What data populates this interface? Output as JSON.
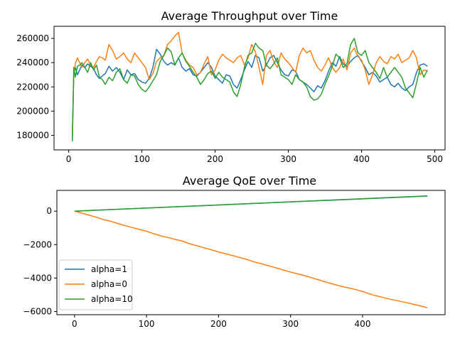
{
  "chart_data": [
    {
      "type": "line",
      "title": "Average Throughput over Time",
      "xlabel": "",
      "ylabel": "",
      "xlim": [
        -20,
        514
      ],
      "ylim": [
        168000,
        270000
      ],
      "x_ticks": [
        0,
        100,
        200,
        300,
        400,
        500
      ],
      "y_ticks": [
        180000,
        200000,
        220000,
        240000,
        260000
      ],
      "grid": false,
      "series": [
        {
          "name": "alpha=1",
          "color": "#1f77b4",
          "x": [
            5,
            7,
            9,
            12,
            15,
            18,
            22,
            26,
            30,
            34,
            38,
            42,
            46,
            50,
            55,
            60,
            65,
            70,
            75,
            80,
            85,
            90,
            95,
            100,
            105,
            110,
            115,
            120,
            125,
            130,
            135,
            140,
            145,
            150,
            155,
            160,
            165,
            170,
            175,
            180,
            185,
            190,
            195,
            200,
            205,
            210,
            215,
            220,
            225,
            230,
            235,
            240,
            245,
            250,
            255,
            260,
            265,
            270,
            275,
            280,
            285,
            290,
            295,
            300,
            305,
            310,
            315,
            320,
            325,
            330,
            335,
            340,
            345,
            350,
            355,
            360,
            365,
            370,
            375,
            380,
            385,
            390,
            395,
            400,
            405,
            410,
            415,
            420,
            425,
            430,
            435,
            440,
            445,
            450,
            455,
            460,
            465,
            470,
            475,
            480,
            485,
            490
          ],
          "y": [
            176000,
            232000,
            236000,
            230000,
            234000,
            238000,
            236000,
            239000,
            237000,
            235000,
            230000,
            227000,
            229000,
            231000,
            237000,
            233000,
            236000,
            232000,
            226000,
            234000,
            230000,
            231000,
            226000,
            224000,
            223000,
            227000,
            236000,
            251000,
            247000,
            241000,
            238000,
            240000,
            238000,
            244000,
            236000,
            233000,
            235000,
            230000,
            229000,
            232000,
            236000,
            240000,
            236000,
            229000,
            226000,
            223000,
            230000,
            229000,
            222000,
            219000,
            226000,
            234000,
            241000,
            236000,
            246000,
            244000,
            233000,
            238000,
            244000,
            246000,
            240000,
            234000,
            230000,
            229000,
            234000,
            233000,
            226000,
            224000,
            222000,
            219000,
            216000,
            221000,
            219000,
            225000,
            233000,
            240000,
            237000,
            245000,
            239000,
            237000,
            241000,
            244000,
            246000,
            241000,
            236000,
            230000,
            232000,
            229000,
            224000,
            226000,
            228000,
            222000,
            220000,
            223000,
            219000,
            217000,
            220000,
            222000,
            232000,
            238000,
            239000,
            237000
          ]
        },
        {
          "name": "alpha=0",
          "color": "#ff7f0e",
          "x": [
            5,
            7,
            9,
            12,
            15,
            18,
            22,
            26,
            30,
            34,
            38,
            42,
            46,
            50,
            55,
            60,
            65,
            70,
            75,
            80,
            85,
            90,
            95,
            100,
            105,
            110,
            115,
            120,
            125,
            130,
            135,
            140,
            145,
            150,
            155,
            160,
            165,
            170,
            175,
            180,
            185,
            190,
            195,
            200,
            205,
            210,
            215,
            220,
            225,
            230,
            235,
            240,
            245,
            250,
            255,
            260,
            265,
            270,
            275,
            280,
            285,
            290,
            295,
            300,
            305,
            310,
            315,
            320,
            325,
            330,
            335,
            340,
            345,
            350,
            355,
            360,
            365,
            370,
            375,
            380,
            385,
            390,
            395,
            400,
            405,
            410,
            415,
            420,
            425,
            430,
            435,
            440,
            445,
            450,
            455,
            460,
            465,
            470,
            475,
            480,
            485,
            490
          ],
          "y": [
            182000,
            230000,
            239000,
            244000,
            240000,
            236000,
            240000,
            243000,
            238000,
            236000,
            241000,
            245000,
            244000,
            242000,
            255000,
            250000,
            243000,
            245000,
            248000,
            243000,
            240000,
            248000,
            244000,
            240000,
            236000,
            226000,
            231000,
            241000,
            244000,
            246000,
            255000,
            258000,
            262000,
            265000,
            248000,
            242000,
            238000,
            236000,
            230000,
            232000,
            239000,
            245000,
            230000,
            234000,
            242000,
            247000,
            244000,
            242000,
            240000,
            244000,
            246000,
            238000,
            244000,
            255000,
            249000,
            236000,
            222000,
            246000,
            250000,
            241000,
            236000,
            248000,
            243000,
            240000,
            236000,
            232000,
            246000,
            252000,
            248000,
            250000,
            242000,
            236000,
            233000,
            238000,
            244000,
            236000,
            232000,
            236000,
            243000,
            234000,
            248000,
            252000,
            245000,
            242000,
            234000,
            222000,
            230000,
            240000,
            245000,
            241000,
            239000,
            245000,
            243000,
            247000,
            240000,
            242000,
            244000,
            250000,
            244000,
            230000,
            234000,
            233000
          ]
        },
        {
          "name": "alpha=10",
          "color": "#2ca02c",
          "x": [
            5,
            7,
            9,
            12,
            15,
            18,
            22,
            26,
            30,
            34,
            38,
            42,
            46,
            50,
            55,
            60,
            65,
            70,
            75,
            80,
            85,
            90,
            95,
            100,
            105,
            110,
            115,
            120,
            125,
            130,
            135,
            140,
            145,
            150,
            155,
            160,
            165,
            170,
            175,
            180,
            185,
            190,
            195,
            200,
            205,
            210,
            215,
            220,
            225,
            230,
            235,
            240,
            245,
            250,
            255,
            260,
            265,
            270,
            275,
            280,
            285,
            290,
            295,
            300,
            305,
            310,
            315,
            320,
            325,
            330,
            335,
            340,
            345,
            350,
            355,
            360,
            365,
            370,
            375,
            380,
            385,
            390,
            395,
            400,
            405,
            410,
            415,
            420,
            425,
            430,
            435,
            440,
            445,
            450,
            455,
            460,
            465,
            470,
            475,
            480,
            485,
            490
          ],
          "y": [
            175000,
            236000,
            228000,
            237000,
            238000,
            240000,
            236000,
            232000,
            240000,
            234000,
            238000,
            228000,
            226000,
            222000,
            228000,
            225000,
            232000,
            235000,
            226000,
            223000,
            230000,
            229000,
            222000,
            218000,
            216000,
            220000,
            225000,
            230000,
            241000,
            246000,
            252000,
            249000,
            238000,
            244000,
            248000,
            241000,
            237000,
            232000,
            228000,
            222000,
            226000,
            231000,
            233000,
            227000,
            232000,
            228000,
            226000,
            224000,
            216000,
            212000,
            222000,
            236000,
            246000,
            248000,
            256000,
            252000,
            250000,
            238000,
            235000,
            239000,
            244000,
            230000,
            228000,
            226000,
            222000,
            230000,
            226000,
            224000,
            220000,
            212000,
            209000,
            210000,
            214000,
            222000,
            229000,
            237000,
            247000,
            244000,
            236000,
            239000,
            255000,
            260000,
            248000,
            246000,
            250000,
            240000,
            236000,
            232000,
            227000,
            236000,
            228000,
            232000,
            236000,
            232000,
            228000,
            219000,
            215000,
            211000,
            223000,
            236000,
            228000,
            234000
          ]
        }
      ]
    },
    {
      "type": "line",
      "title": "Average QoE over Time",
      "xlabel": "",
      "ylabel": "",
      "xlim": [
        -24.5,
        514.5
      ],
      "ylim": [
        -6190,
        1240
      ],
      "x_ticks": [
        0,
        100,
        200,
        300,
        400
      ],
      "y_ticks": [
        0,
        -2000,
        -4000,
        -6000
      ],
      "grid": false,
      "legend": {
        "placement": "lower-left",
        "entries": [
          "alpha=1",
          "alpha=0",
          "alpha=10"
        ]
      },
      "series": [
        {
          "name": "alpha=1",
          "color": "#1f77b4",
          "x": [
            0,
            490
          ],
          "y": [
            0,
            900
          ]
        },
        {
          "name": "alpha=0",
          "color": "#ff7f0e",
          "x": [
            0,
            10,
            20,
            30,
            40,
            50,
            60,
            70,
            80,
            90,
            100,
            110,
            120,
            130,
            140,
            150,
            160,
            170,
            180,
            190,
            200,
            210,
            220,
            230,
            240,
            250,
            260,
            270,
            280,
            290,
            300,
            310,
            320,
            330,
            340,
            350,
            360,
            370,
            380,
            390,
            400,
            410,
            420,
            430,
            440,
            450,
            460,
            470,
            480,
            490
          ],
          "y": [
            0,
            -120,
            -240,
            -360,
            -500,
            -600,
            -740,
            -860,
            -980,
            -1090,
            -1200,
            -1350,
            -1480,
            -1580,
            -1690,
            -1790,
            -1950,
            -2070,
            -2190,
            -2310,
            -2440,
            -2550,
            -2660,
            -2780,
            -2900,
            -3040,
            -3150,
            -3270,
            -3390,
            -3520,
            -3640,
            -3750,
            -3860,
            -3990,
            -4120,
            -4250,
            -4370,
            -4490,
            -4580,
            -4680,
            -4800,
            -4950,
            -5070,
            -5180,
            -5280,
            -5370,
            -5460,
            -5560,
            -5660,
            -5770
          ]
        },
        {
          "name": "alpha=10",
          "color": "#2ca02c",
          "x": [
            0,
            490
          ],
          "y": [
            0,
            910
          ]
        }
      ]
    }
  ]
}
